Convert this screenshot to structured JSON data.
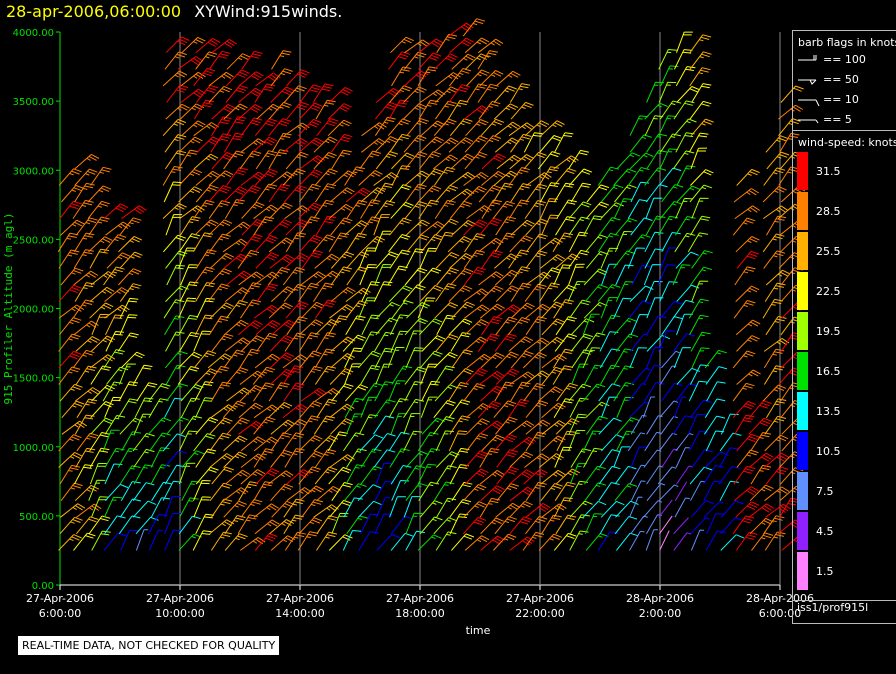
{
  "header": {
    "timestamp": "28-apr-2006,06:00:00",
    "product": "XYWind:915winds."
  },
  "legend": {
    "barb_title": "barb flags in knots",
    "barbs": [
      {
        "label": "== 100"
      },
      {
        "label": "== 50"
      },
      {
        "label": "== 10"
      },
      {
        "label": "== 5"
      }
    ],
    "speed_title": "wind-speed: knots",
    "speed_bins": [
      {
        "label": "31.5",
        "color": "#ff0000"
      },
      {
        "label": "28.5",
        "color": "#ff8000"
      },
      {
        "label": "25.5",
        "color": "#ffb000"
      },
      {
        "label": "22.5",
        "color": "#ffff00"
      },
      {
        "label": "19.5",
        "color": "#a0ff00"
      },
      {
        "label": "16.5",
        "color": "#00e000"
      },
      {
        "label": "13.5",
        "color": "#00ffff"
      },
      {
        "label": "10.5",
        "color": "#0000ff"
      },
      {
        "label": "7.5",
        "color": "#6090ff"
      },
      {
        "label": "4.5",
        "color": "#9020ff"
      },
      {
        "label": "1.5",
        "color": "#ff80ff"
      }
    ]
  },
  "footer": {
    "source": "iss1/prof915l",
    "quality_note": "REAL-TIME DATA, NOT CHECKED FOR QUALITY"
  },
  "chart_data": {
    "type": "wind-barb",
    "ylabel": "915 Profiler Altitude (m agl)",
    "xlabel": "time",
    "ylim": [
      0,
      4000
    ],
    "yticks": [
      "0.00",
      "500.00",
      "1000.00",
      "1500.00",
      "2000.00",
      "2500.00",
      "3000.00",
      "3500.00",
      "4000.00"
    ],
    "xticks": [
      {
        "date": "27-Apr-2006",
        "time": "6:00:00"
      },
      {
        "date": "27-Apr-2006",
        "time": "10:00:00"
      },
      {
        "date": "27-Apr-2006",
        "time": "14:00:00"
      },
      {
        "date": "27-Apr-2006",
        "time": "18:00:00"
      },
      {
        "date": "27-Apr-2006",
        "time": "22:00:00"
      },
      {
        "date": "28-Apr-2006",
        "time": "2:00:00"
      },
      {
        "date": "28-Apr-2006",
        "time": "6:00:00"
      }
    ],
    "x_range_hours": [
      0,
      24
    ],
    "grid": "vertical lines at ticks",
    "profiles": [
      {
        "hour": 0.0,
        "top": 3000,
        "base_speed": 27,
        "top_speed": 30
      },
      {
        "hour": 0.5,
        "top": 3100,
        "base_speed": 25,
        "top_speed": 30
      },
      {
        "hour": 1.0,
        "top": 2950,
        "base_speed": 20,
        "top_speed": 28
      },
      {
        "hour": 1.5,
        "top": 2700,
        "base_speed": 12,
        "top_speed": 31
      },
      {
        "hour": 2.0,
        "top": 2700,
        "base_speed": 11,
        "top_speed": 31
      },
      {
        "hour": 2.5,
        "top": 1500,
        "base_speed": 10,
        "top_speed": 26
      },
      {
        "hour": 3.0,
        "top": 1400,
        "base_speed": 11,
        "top_speed": 20
      },
      {
        "hour": 3.5,
        "top": 3900,
        "base_speed": 10,
        "top_speed": 31
      },
      {
        "hour": 4.0,
        "top": 3900,
        "base_speed": 15,
        "top_speed": 31
      },
      {
        "hour": 4.5,
        "top": 3900,
        "base_speed": 20,
        "top_speed": 31
      },
      {
        "hour": 5.0,
        "top": 3900,
        "base_speed": 25,
        "top_speed": 31
      },
      {
        "hour": 5.5,
        "top": 3800,
        "base_speed": 27,
        "top_speed": 31
      },
      {
        "hour": 6.0,
        "top": 3800,
        "base_speed": 28,
        "top_speed": 31
      },
      {
        "hour": 6.5,
        "top": 3700,
        "base_speed": 29,
        "top_speed": 31
      },
      {
        "hour": 7.0,
        "top": 3800,
        "base_speed": 28,
        "top_speed": 31
      },
      {
        "hour": 7.5,
        "top": 3700,
        "base_speed": 28,
        "top_speed": 31
      },
      {
        "hour": 8.0,
        "top": 3500,
        "base_speed": 28,
        "top_speed": 31
      },
      {
        "hour": 8.5,
        "top": 3500,
        "base_speed": 26,
        "top_speed": 31
      },
      {
        "hour": 9.0,
        "top": 3600,
        "base_speed": 22,
        "top_speed": 31
      },
      {
        "hour": 9.5,
        "top": 3000,
        "base_speed": 14,
        "top_speed": 30
      },
      {
        "hour": 10.0,
        "top": 3300,
        "base_speed": 12,
        "top_speed": 30
      },
      {
        "hour": 10.5,
        "top": 3600,
        "base_speed": 10,
        "top_speed": 31
      },
      {
        "hour": 11.0,
        "top": 3900,
        "base_speed": 12,
        "top_speed": 31
      },
      {
        "hour": 11.5,
        "top": 3900,
        "base_speed": 14,
        "top_speed": 31
      },
      {
        "hour": 12.0,
        "top": 3950,
        "base_speed": 16,
        "top_speed": 31
      },
      {
        "hour": 12.5,
        "top": 3950,
        "base_speed": 18,
        "top_speed": 31
      },
      {
        "hour": 13.0,
        "top": 4000,
        "base_speed": 22,
        "top_speed": 30
      },
      {
        "hour": 13.5,
        "top": 4000,
        "base_speed": 30,
        "top_speed": 28
      },
      {
        "hour": 14.0,
        "top": 3950,
        "base_speed": 31,
        "top_speed": 28
      },
      {
        "hour": 14.5,
        "top": 3700,
        "base_speed": 31,
        "top_speed": 27
      },
      {
        "hour": 15.0,
        "top": 3500,
        "base_speed": 31,
        "top_speed": 26
      },
      {
        "hour": 15.5,
        "top": 3300,
        "base_speed": 30,
        "top_speed": 25
      },
      {
        "hour": 16.0,
        "top": 3300,
        "base_speed": 28,
        "top_speed": 24
      },
      {
        "hour": 16.5,
        "top": 3200,
        "base_speed": 24,
        "top_speed": 24
      },
      {
        "hour": 17.0,
        "top": 3100,
        "base_speed": 18,
        "top_speed": 22
      },
      {
        "hour": 17.5,
        "top": 2800,
        "base_speed": 16,
        "top_speed": 20
      },
      {
        "hour": 18.0,
        "top": 3000,
        "base_speed": 12,
        "top_speed": 19
      },
      {
        "hour": 18.5,
        "top": 3100,
        "base_speed": 14,
        "top_speed": 18
      },
      {
        "hour": 19.0,
        "top": 3300,
        "base_speed": 8,
        "top_speed": 16
      },
      {
        "hour": 19.5,
        "top": 3600,
        "base_speed": 6,
        "top_speed": 18
      },
      {
        "hour": 20.0,
        "top": 3800,
        "base_speed": 4,
        "top_speed": 20
      },
      {
        "hour": 20.5,
        "top": 3900,
        "base_speed": 5,
        "top_speed": 24
      },
      {
        "hour": 21.0,
        "top": 3950,
        "base_speed": 8,
        "top_speed": 27
      },
      {
        "hour": 21.5,
        "top": 1600,
        "base_speed": 10,
        "top_speed": 15
      },
      {
        "hour": 22.0,
        "top": 1200,
        "base_speed": 12,
        "top_speed": 13
      },
      {
        "hour": 22.5,
        "top": 3000,
        "base_speed": 31,
        "top_speed": 28
      },
      {
        "hour": 23.0,
        "top": 1300,
        "base_speed": 30,
        "top_speed": 31
      },
      {
        "hour": 23.5,
        "top": 3200,
        "base_speed": 29,
        "top_speed": 27
      },
      {
        "hour": 24.0,
        "top": 3500,
        "base_speed": 31,
        "top_speed": 26
      }
    ]
  }
}
